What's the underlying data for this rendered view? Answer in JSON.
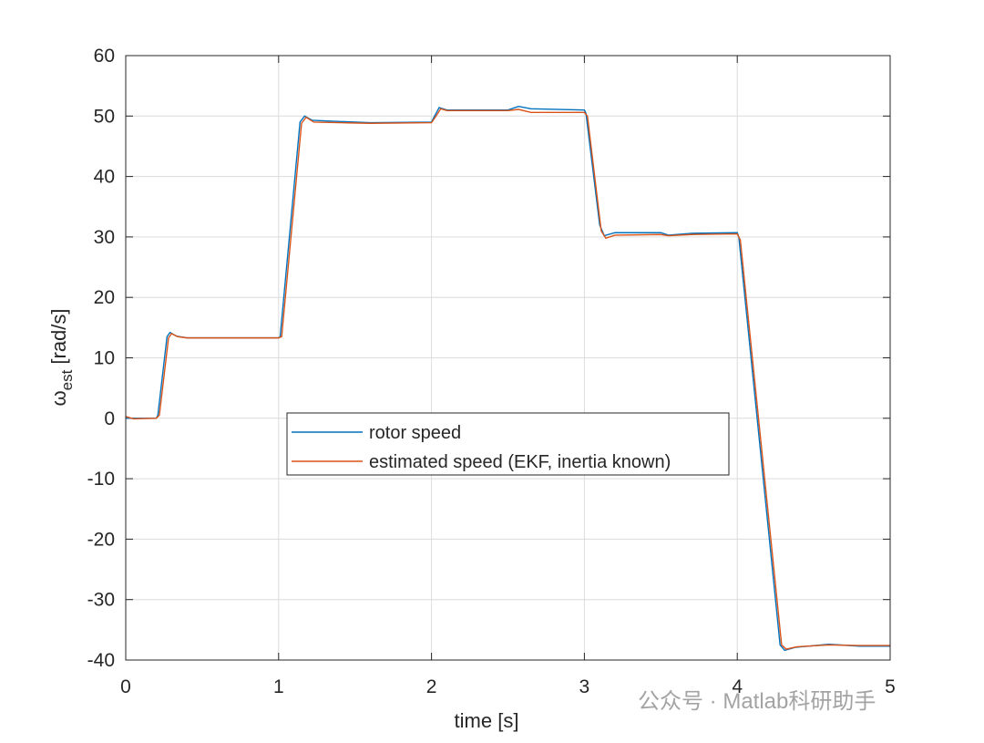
{
  "chart_data": {
    "type": "line",
    "ylabel_main": "ω",
    "ylabel_sub": "est",
    "ylabel_unit": "[rad/s]",
    "xlabel": "time [s]",
    "xlim": [
      0,
      5
    ],
    "xticks": [
      0,
      1,
      2,
      3,
      4,
      5
    ],
    "ylim": [
      -40,
      60
    ],
    "yticks": [
      -40,
      -30,
      -20,
      -10,
      0,
      10,
      20,
      30,
      40,
      50,
      60
    ],
    "grid": true,
    "legend_position": "center",
    "watermark": "公众号 · Matlab科研助手",
    "series": [
      {
        "name": "rotor speed",
        "color": "#0072BD",
        "x": [
          0,
          0.2,
          0.21,
          0.27,
          0.29,
          0.33,
          0.4,
          1.0,
          1.01,
          1.14,
          1.17,
          1.22,
          1.4,
          1.6,
          2.0,
          2.02,
          2.05,
          2.1,
          2.5,
          2.57,
          2.65,
          3.0,
          3.01,
          3.1,
          3.13,
          3.2,
          3.5,
          3.55,
          3.7,
          4.0,
          4.01,
          4.28,
          4.31,
          4.38,
          4.6,
          4.8,
          5.0
        ],
        "values": [
          0,
          0,
          0.5,
          13.5,
          14.2,
          13.6,
          13.3,
          13.3,
          13.5,
          49.0,
          50.0,
          49.3,
          49.1,
          48.9,
          49.0,
          50,
          51.4,
          51.0,
          51.0,
          51.6,
          51.2,
          51.0,
          50.5,
          32,
          30.2,
          30.7,
          30.7,
          30.3,
          30.6,
          30.7,
          30,
          -37.5,
          -38.4,
          -37.9,
          -37.4,
          -37.7,
          -37.7
        ]
      },
      {
        "name": "estimated speed (EKF, inertia known)",
        "color": "#D95319",
        "x": [
          0,
          0.05,
          0.2,
          0.22,
          0.28,
          0.3,
          0.34,
          0.4,
          1.0,
          1.02,
          1.15,
          1.18,
          1.23,
          1.4,
          1.6,
          2.0,
          2.03,
          2.06,
          2.1,
          2.5,
          2.57,
          2.65,
          3.0,
          3.02,
          3.11,
          3.14,
          3.2,
          3.5,
          3.55,
          3.7,
          4.0,
          4.02,
          4.29,
          4.32,
          4.39,
          4.6,
          4.8,
          5.0
        ],
        "values": [
          0.3,
          -0.1,
          0,
          0.5,
          13.3,
          14.0,
          13.5,
          13.3,
          13.3,
          13.5,
          48.8,
          49.8,
          49.0,
          48.9,
          48.8,
          48.9,
          50,
          51.2,
          50.9,
          50.9,
          51.1,
          50.6,
          50.6,
          50,
          31,
          29.8,
          30.3,
          30.4,
          30.2,
          30.4,
          30.5,
          29.5,
          -37.5,
          -38.2,
          -37.8,
          -37.5,
          -37.6,
          -37.6
        ]
      }
    ]
  }
}
